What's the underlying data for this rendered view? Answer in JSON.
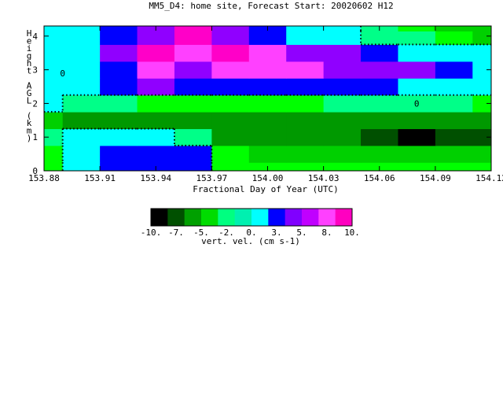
{
  "chart_data": {
    "type": "heatmap",
    "title": "MM5_D4: home site,  Forecast Start: 20020602 H12",
    "xlabel": "Fractional Day of Year (UTC)",
    "ylabel_chars": [
      "H",
      "e",
      "i",
      "g",
      "h",
      "t",
      "",
      "A",
      "G",
      "L",
      "",
      "(",
      "k",
      "m",
      ")"
    ],
    "x_ticks": [
      "153.88",
      "153.91",
      "153.94",
      "153.97",
      "154.00",
      "154.03",
      "154.06",
      "154.09",
      "154.12"
    ],
    "y_ticks": [
      "0",
      "1",
      "2",
      "3",
      "4"
    ],
    "xlim": [
      153.88,
      154.12
    ],
    "ylim": [
      0,
      4.3
    ],
    "contour_label": "0",
    "colorbar": {
      "label": "vert. vel. (cm s-1)",
      "tick_labels": [
        "-10.",
        "-7.",
        "-5.",
        "-2.",
        "0.",
        "3.",
        "5.",
        "8.",
        "10."
      ],
      "colors": [
        "#000000",
        "#005000",
        "#00a000",
        "#00dc00",
        "#00ff80",
        "#00f0b0",
        "#00ffff",
        "#0000ff",
        "#8000ff",
        "#c000ff",
        "#ff40ff",
        "#ff00c0"
      ]
    },
    "level_colors": {
      "-9": "#000000",
      "-8": "#005000",
      "-6": "#009900",
      "-4": "#00d000",
      "-2": "#00ff00",
      "-1": "#00ff88",
      "0": "#00ffff",
      "2": "#0000ff",
      "4": "#9000ff",
      "6": "#ff40ff",
      "8": "#ff00c8"
    },
    "cells": {
      "x": [
        153.88,
        153.9,
        153.92,
        153.94,
        153.96,
        153.98,
        154.0,
        154.02,
        154.04,
        154.06,
        154.08,
        154.1,
        154.12
      ],
      "y": [
        0,
        0.5,
        1.0,
        1.5,
        2.0,
        2.5,
        3.0,
        3.5,
        4.0,
        4.3
      ],
      "z": [
        [
          -2,
          0,
          2,
          2,
          2,
          -2,
          -2,
          -2,
          -2,
          -2,
          -2,
          -2,
          -2
        ],
        [
          -2,
          0,
          2,
          2,
          2,
          -2,
          -4,
          -4,
          -4,
          -4,
          -4,
          -4,
          -4
        ],
        [
          -1,
          0,
          0,
          0,
          -1,
          -6,
          -6,
          -6,
          -6,
          -8,
          -9,
          -8,
          -8
        ],
        [
          -4,
          -6,
          -6,
          -6,
          -6,
          -6,
          -6,
          -6,
          -6,
          -6,
          -6,
          -6,
          -6
        ],
        [
          0,
          -1,
          -1,
          -2,
          -2,
          -2,
          -2,
          -2,
          -1,
          -1,
          -1,
          -1,
          -2
        ],
        [
          0,
          0,
          2,
          4,
          2,
          2,
          2,
          2,
          2,
          2,
          0,
          0,
          0
        ],
        [
          0,
          0,
          2,
          6,
          4,
          6,
          6,
          6,
          4,
          4,
          4,
          2,
          0
        ],
        [
          0,
          0,
          4,
          8,
          6,
          8,
          6,
          4,
          4,
          2,
          0,
          0,
          0
        ],
        [
          0,
          0,
          2,
          4,
          8,
          4,
          2,
          0,
          0,
          -1,
          -1,
          -2,
          -4
        ],
        [
          0,
          0,
          2,
          4,
          8,
          4,
          2,
          0,
          0,
          -1,
          -2,
          -4,
          -4
        ]
      ]
    }
  }
}
